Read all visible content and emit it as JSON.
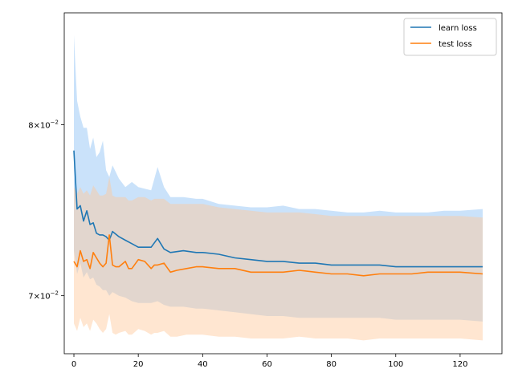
{
  "chart_data": {
    "type": "line",
    "title": "",
    "xlabel": "",
    "ylabel": "",
    "y_scale": "log",
    "xlim": [
      -3,
      133
    ],
    "ylim": [
      0.0669,
      0.0873
    ],
    "grid": false,
    "legend_position": "top-right",
    "x_ticks": [
      0,
      20,
      40,
      60,
      80,
      100,
      120
    ],
    "x_tick_labels": [
      "0",
      "20",
      "40",
      "60",
      "80",
      "100",
      "120"
    ],
    "y_ticks": [
      0.07,
      0.08
    ],
    "y_tick_labels": [
      {
        "mantissa": "7",
        "base": "10",
        "exponent": "−2"
      },
      {
        "mantissa": "8",
        "base": "10",
        "exponent": "−2"
      }
    ],
    "legend": [
      {
        "label": "learn loss",
        "color": "#1f77b4"
      },
      {
        "label": "test loss",
        "color": "#ff7f0e"
      }
    ],
    "series": [
      {
        "name": "learn loss",
        "color": "#1f77b4",
        "band_color": "#9fcbf5",
        "x": [
          0,
          1,
          2,
          3,
          4,
          5,
          6,
          7,
          8,
          9,
          10,
          11,
          12,
          14,
          16,
          18,
          20,
          24,
          26,
          28,
          30,
          34,
          38,
          40,
          45,
          50,
          55,
          60,
          65,
          70,
          75,
          80,
          85,
          90,
          95,
          100,
          105,
          110,
          115,
          120,
          127
        ],
        "y": [
          0.0784,
          0.0749,
          0.0751,
          0.0742,
          0.0748,
          0.074,
          0.0741,
          0.0735,
          0.0734,
          0.0734,
          0.0733,
          0.0731,
          0.0736,
          0.0733,
          0.0731,
          0.0729,
          0.0727,
          0.0727,
          0.0732,
          0.0726,
          0.0724,
          0.0725,
          0.0724,
          0.0724,
          0.0723,
          0.0721,
          0.072,
          0.0719,
          0.0719,
          0.0718,
          0.0718,
          0.0717,
          0.0717,
          0.0717,
          0.0717,
          0.0716,
          0.0716,
          0.0716,
          0.0716,
          0.0716,
          0.0716
        ],
        "upper": [
          0.0858,
          0.0815,
          0.0805,
          0.0798,
          0.0798,
          0.0785,
          0.0792,
          0.078,
          0.0783,
          0.079,
          0.0772,
          0.0768,
          0.0775,
          0.0767,
          0.0762,
          0.0765,
          0.0762,
          0.076,
          0.0774,
          0.0762,
          0.0756,
          0.0756,
          0.0755,
          0.0755,
          0.0752,
          0.0751,
          0.075,
          0.075,
          0.0751,
          0.0749,
          0.0749,
          0.0748,
          0.0747,
          0.0747,
          0.0748,
          0.0747,
          0.0747,
          0.0747,
          0.0748,
          0.0748,
          0.0749
        ],
        "lower": [
          0.0725,
          0.0712,
          0.0718,
          0.071,
          0.0713,
          0.0709,
          0.071,
          0.0706,
          0.0705,
          0.0703,
          0.0703,
          0.07,
          0.0702,
          0.07,
          0.0699,
          0.0697,
          0.0696,
          0.0696,
          0.0697,
          0.0695,
          0.0694,
          0.0694,
          0.0693,
          0.0693,
          0.0692,
          0.0691,
          0.069,
          0.0689,
          0.0689,
          0.0688,
          0.0688,
          0.0688,
          0.0688,
          0.0688,
          0.0688,
          0.0687,
          0.0687,
          0.0687,
          0.0687,
          0.0687,
          0.0686
        ]
      },
      {
        "name": "test loss",
        "color": "#ff7f0e",
        "band_color": "#ffc89a",
        "x": [
          0,
          1,
          2,
          3,
          4,
          5,
          6,
          7,
          8,
          9,
          10,
          11,
          12,
          13,
          14,
          16,
          17,
          18,
          20,
          22,
          24,
          25,
          26,
          28,
          30,
          32,
          35,
          38,
          40,
          45,
          50,
          55,
          60,
          65,
          70,
          75,
          80,
          85,
          90,
          95,
          100,
          105,
          110,
          115,
          120,
          127
        ],
        "y": [
          0.0719,
          0.0716,
          0.0725,
          0.0719,
          0.072,
          0.0715,
          0.0724,
          0.0721,
          0.0718,
          0.0716,
          0.0718,
          0.0734,
          0.0717,
          0.0716,
          0.0716,
          0.0719,
          0.0715,
          0.0715,
          0.072,
          0.0719,
          0.0715,
          0.0717,
          0.0717,
          0.0718,
          0.0713,
          0.0714,
          0.0715,
          0.0716,
          0.0716,
          0.0715,
          0.0715,
          0.0713,
          0.0713,
          0.0713,
          0.0714,
          0.0713,
          0.0712,
          0.0712,
          0.0711,
          0.0712,
          0.0712,
          0.0712,
          0.0713,
          0.0713,
          0.0713,
          0.0712
        ],
        "upper": [
          0.0762,
          0.0758,
          0.0762,
          0.0758,
          0.076,
          0.0757,
          0.0763,
          0.076,
          0.0757,
          0.0757,
          0.0758,
          0.0768,
          0.0757,
          0.0756,
          0.0756,
          0.0756,
          0.0754,
          0.0754,
          0.0756,
          0.0756,
          0.0754,
          0.0755,
          0.0755,
          0.0755,
          0.0752,
          0.0752,
          0.0752,
          0.0752,
          0.0752,
          0.075,
          0.0749,
          0.0748,
          0.0747,
          0.0747,
          0.0747,
          0.0746,
          0.0745,
          0.0745,
          0.0745,
          0.0745,
          0.0745,
          0.0745,
          0.0745,
          0.0745,
          0.0745,
          0.0744
        ],
        "lower": [
          0.0685,
          0.0681,
          0.0688,
          0.0683,
          0.0685,
          0.0681,
          0.0687,
          0.0685,
          0.0682,
          0.068,
          0.0682,
          0.069,
          0.068,
          0.0679,
          0.068,
          0.0681,
          0.0679,
          0.0679,
          0.0682,
          0.0681,
          0.0679,
          0.068,
          0.068,
          0.0681,
          0.0678,
          0.0678,
          0.0679,
          0.0679,
          0.0679,
          0.0678,
          0.0678,
          0.0677,
          0.0677,
          0.0677,
          0.0678,
          0.0677,
          0.0677,
          0.0677,
          0.0676,
          0.0677,
          0.0677,
          0.0677,
          0.0677,
          0.0677,
          0.0677,
          0.0676
        ]
      }
    ]
  }
}
